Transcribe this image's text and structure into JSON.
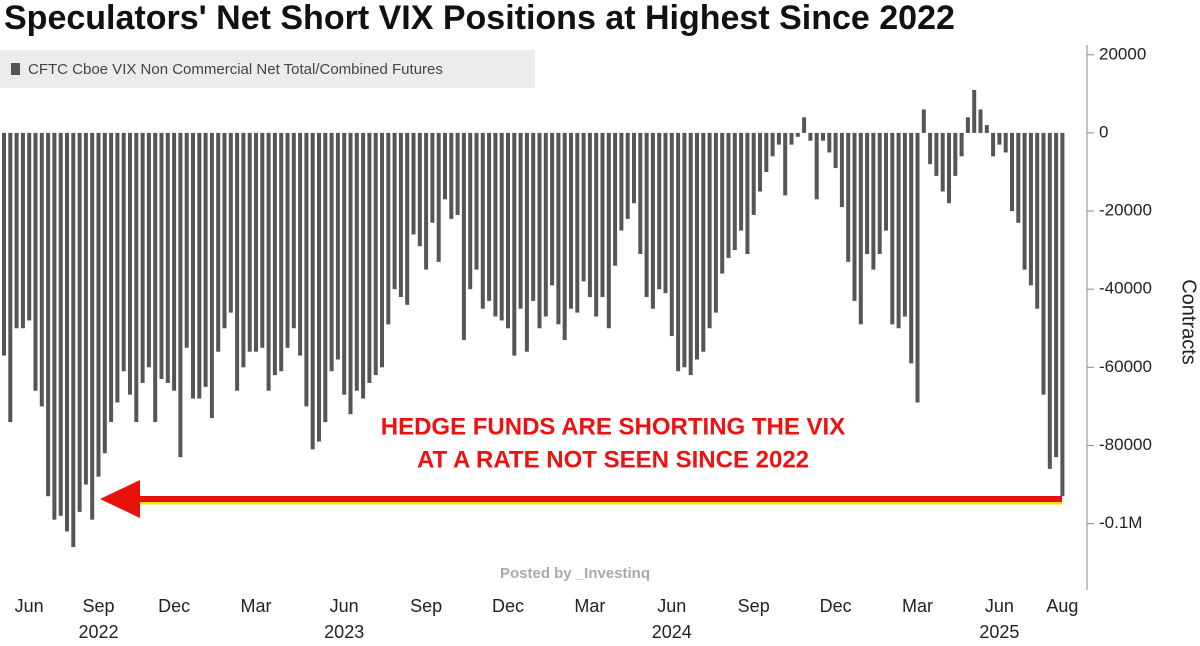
{
  "chart_data": {
    "type": "bar",
    "title": "Speculators' Net Short VIX Positions at Highest Since 2022",
    "legend": "CFTC Cboe VIX Non Commercial Net Total/Combined Futures",
    "y_axis_label": "Contracts",
    "annotation": [
      "HEDGE FUNDS ARE SHORTING THE VIX",
      "AT A RATE NOT SEEN SINCE 2022"
    ],
    "watermark": "Posted by _Investinq",
    "color": "#555555",
    "ylim": [
      -117000,
      22500
    ],
    "yticks": [
      20000,
      0,
      -20000,
      -40000,
      -60000,
      -80000,
      {
        "value": -100000,
        "label": "-0.1M"
      }
    ],
    "categories": [
      null,
      null,
      null,
      null,
      "Jun",
      null,
      null,
      null,
      null,
      null,
      null,
      null,
      null,
      null,
      null,
      "Sep",
      null,
      null,
      null,
      null,
      null,
      null,
      null,
      null,
      null,
      null,
      null,
      "Dec",
      null,
      null,
      null,
      null,
      null,
      null,
      null,
      null,
      null,
      null,
      null,
      null,
      "Mar",
      null,
      null,
      null,
      null,
      null,
      null,
      null,
      null,
      null,
      null,
      null,
      null,
      null,
      "Jun",
      null,
      null,
      null,
      null,
      null,
      null,
      null,
      null,
      null,
      null,
      null,
      null,
      "Sep",
      null,
      null,
      null,
      null,
      null,
      null,
      null,
      null,
      null,
      null,
      null,
      null,
      "Dec",
      null,
      null,
      null,
      null,
      null,
      null,
      null,
      null,
      null,
      null,
      null,
      null,
      "Mar",
      null,
      null,
      null,
      null,
      null,
      null,
      null,
      null,
      null,
      null,
      null,
      null,
      "Jun",
      null,
      null,
      null,
      null,
      null,
      null,
      null,
      null,
      null,
      null,
      null,
      null,
      "Sep",
      null,
      null,
      null,
      null,
      null,
      null,
      null,
      null,
      null,
      null,
      null,
      null,
      "Dec",
      null,
      null,
      null,
      null,
      null,
      null,
      null,
      null,
      null,
      null,
      null,
      null,
      "Mar",
      null,
      null,
      null,
      null,
      null,
      null,
      null,
      null,
      null,
      null,
      null,
      null,
      "Jun",
      null,
      null,
      null,
      null,
      null,
      null,
      null,
      null,
      null,
      "Aug"
    ],
    "year_labels": [
      null,
      null,
      null,
      null,
      null,
      null,
      null,
      null,
      null,
      null,
      null,
      null,
      null,
      null,
      null,
      "2022",
      null,
      null,
      null,
      null,
      null,
      null,
      null,
      null,
      null,
      null,
      null,
      null,
      null,
      null,
      null,
      null,
      null,
      null,
      null,
      null,
      null,
      null,
      null,
      null,
      null,
      null,
      null,
      null,
      null,
      null,
      null,
      null,
      null,
      null,
      null,
      null,
      null,
      null,
      "2023",
      null,
      null,
      null,
      null,
      null,
      null,
      null,
      null,
      null,
      null,
      null,
      null,
      null,
      null,
      null,
      null,
      null,
      null,
      null,
      null,
      null,
      null,
      null,
      null,
      null,
      null,
      null,
      null,
      null,
      null,
      null,
      null,
      null,
      null,
      null,
      null,
      null,
      null,
      null,
      null,
      null,
      null,
      null,
      null,
      null,
      null,
      null,
      null,
      null,
      null,
      null,
      "2024",
      null,
      null,
      null,
      null,
      null,
      null,
      null,
      null,
      null,
      null,
      null,
      null,
      null,
      null,
      null,
      null,
      null,
      null,
      null,
      null,
      null,
      null,
      null,
      null,
      null,
      null,
      null,
      null,
      null,
      null,
      null,
      null,
      null,
      null,
      null,
      null,
      null,
      null,
      null,
      null,
      null,
      null,
      null,
      null,
      null,
      null,
      null,
      null,
      null,
      null,
      null,
      "2025",
      null,
      null,
      null,
      null,
      null,
      null,
      null,
      null,
      null,
      null
    ],
    "values": [
      -57000,
      -74000,
      -50000,
      -50000,
      -48000,
      -66000,
      -70000,
      -93000,
      -99000,
      -98000,
      -102000,
      -106000,
      -97000,
      -90000,
      -99000,
      -88000,
      -82000,
      -74000,
      -69000,
      -61000,
      -67000,
      -74000,
      -64000,
      -60000,
      -74000,
      -63000,
      -64000,
      -66000,
      -83000,
      -55000,
      -68000,
      -68000,
      -65000,
      -73000,
      -56000,
      -50000,
      -46000,
      -66000,
      -60000,
      -56000,
      -56000,
      -55000,
      -66000,
      -62000,
      -61000,
      -55000,
      -50000,
      -57000,
      -70000,
      -81000,
      -79000,
      -74000,
      -61000,
      -58000,
      -67000,
      -72000,
      -66000,
      -68000,
      -64000,
      -62000,
      -60000,
      -49000,
      -40000,
      -42000,
      -44000,
      -26000,
      -29000,
      -35000,
      -23000,
      -33000,
      -17000,
      -22000,
      -21000,
      -53000,
      -40000,
      -35000,
      -45000,
      -43000,
      -47000,
      -48000,
      -50000,
      -57000,
      -45000,
      -56000,
      -43000,
      -50000,
      -47000,
      -39000,
      -49000,
      -53000,
      -45000,
      -46000,
      -38000,
      -42000,
      -47000,
      -42000,
      -50000,
      -34000,
      -25000,
      -22000,
      -18000,
      -31000,
      -42000,
      -45000,
      -40000,
      -41000,
      -52000,
      -61000,
      -60000,
      -62000,
      -58000,
      -56000,
      -50000,
      -46000,
      -36000,
      -32000,
      -30000,
      -25000,
      -31000,
      -21000,
      -15000,
      -10000,
      -6000,
      -3000,
      -16000,
      -3000,
      -1000,
      4000,
      -2000,
      -17000,
      -2000,
      -5000,
      -9000,
      -19000,
      -33000,
      -43000,
      -49000,
      -31000,
      -35000,
      -31000,
      -25000,
      -49000,
      -50000,
      -47000,
      -59000,
      -69000,
      6000,
      -8000,
      -11000,
      -15000,
      -18000,
      -11000,
      -6000,
      4000,
      11000,
      6000,
      2000,
      -6000,
      -3000,
      -5000,
      -20000,
      -23000,
      -35000,
      -39000,
      -45000,
      -67000,
      -86000,
      -83000,
      -93000
    ]
  }
}
